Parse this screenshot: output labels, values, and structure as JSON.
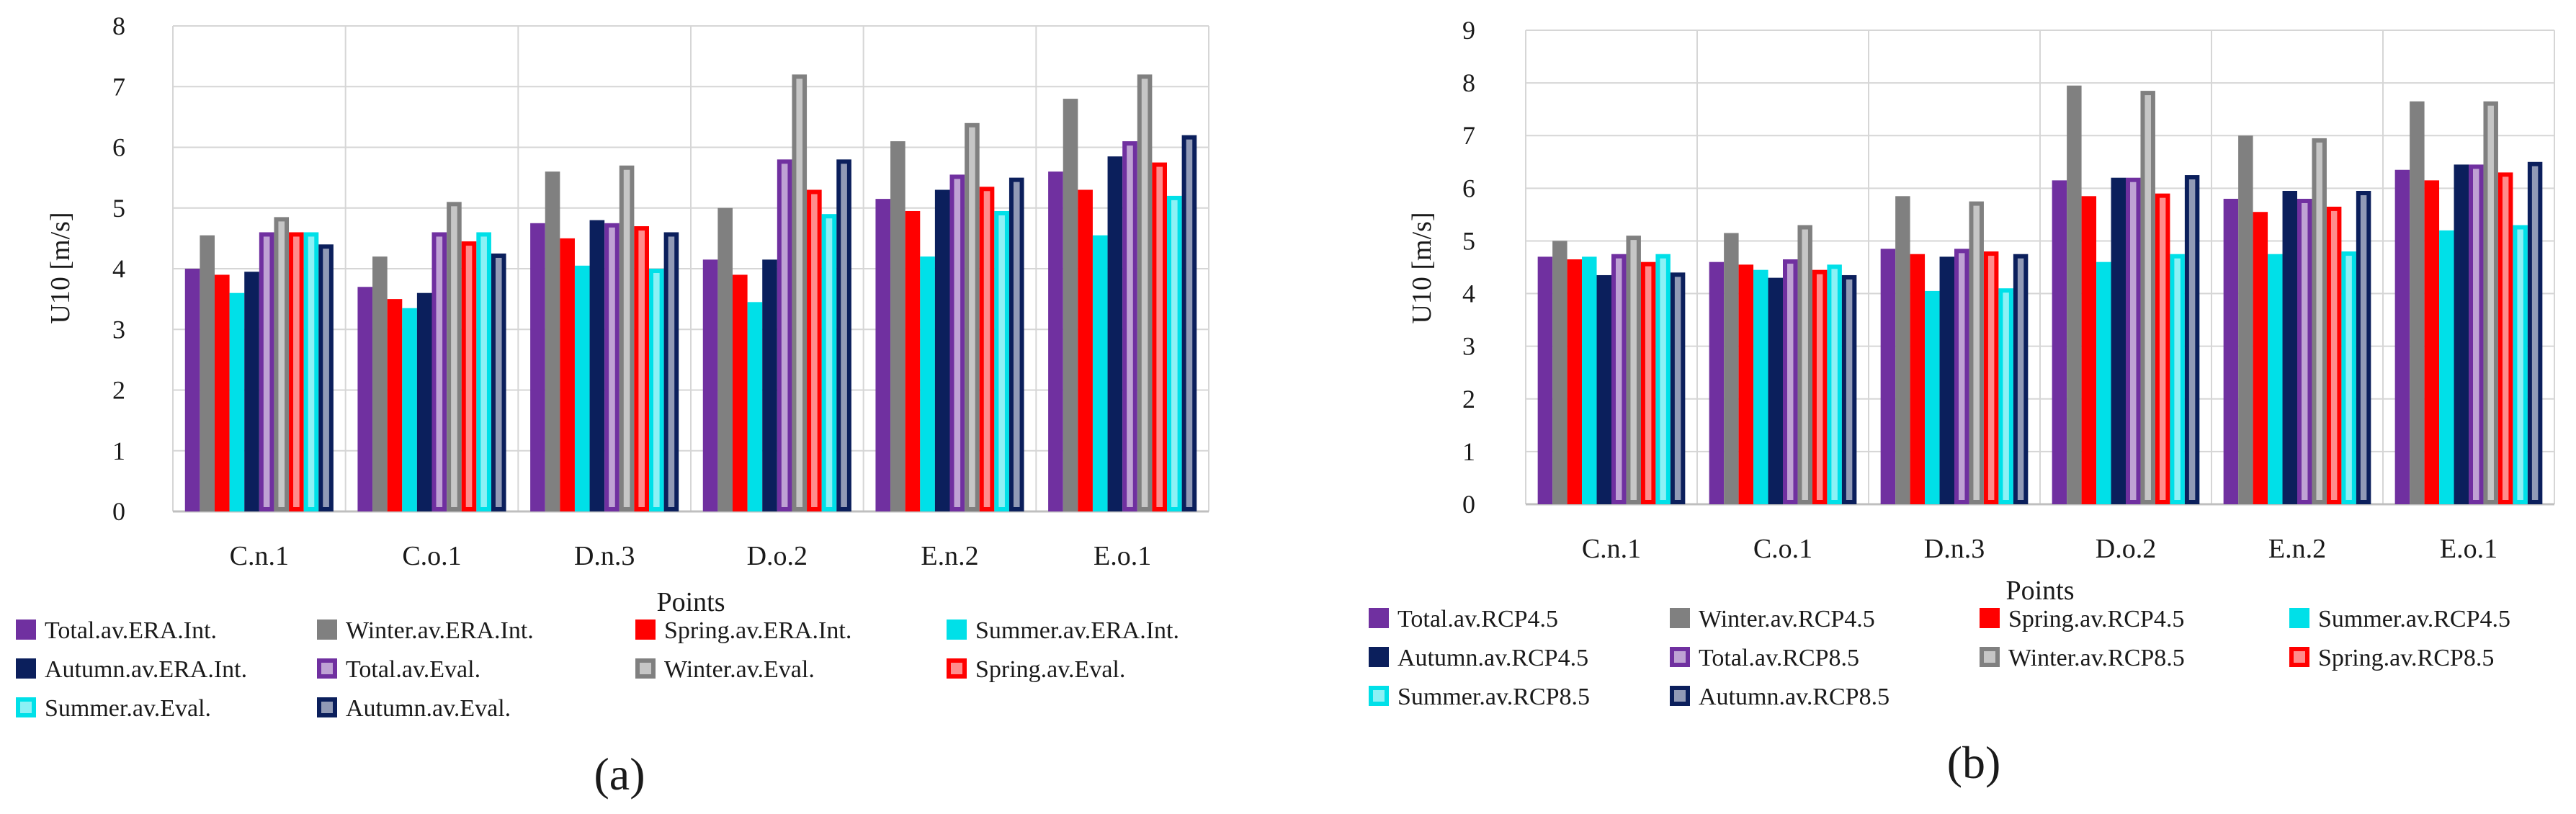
{
  "chart_data": [
    {
      "type": "bar",
      "panel_label": "(a)",
      "ylabel": "U10 [m/s]",
      "xlabel": "Points",
      "ylim": [
        0,
        8
      ],
      "yticks": [
        "0",
        "1",
        "2",
        "3",
        "4",
        "5",
        "6",
        "7",
        "8"
      ],
      "grid": true,
      "categories": [
        "C.n.1",
        "C.o.1",
        "D.n.3",
        "D.o.2",
        "E.n.2",
        "E.o.1"
      ],
      "series": [
        {
          "name": "Total.av.ERA.Int.",
          "style": "solid",
          "color": "#7030A0",
          "values": [
            4.0,
            3.7,
            4.75,
            4.15,
            5.15,
            5.6
          ]
        },
        {
          "name": "Winter.av.ERA.Int.",
          "style": "solid",
          "color": "#808080",
          "values": [
            4.55,
            4.2,
            5.6,
            5.0,
            6.1,
            6.8
          ]
        },
        {
          "name": "Spring.av.ERA.Int.",
          "style": "solid",
          "color": "#FF0000",
          "values": [
            3.9,
            3.5,
            4.5,
            3.9,
            4.95,
            5.3
          ]
        },
        {
          "name": "Summer.av.ERA.Int.",
          "style": "solid",
          "color": "#00E0E8",
          "values": [
            3.6,
            3.35,
            4.05,
            3.45,
            4.2,
            4.55
          ]
        },
        {
          "name": "Autumn.av.ERA.Int.",
          "style": "solid",
          "color": "#0B1F5C",
          "values": [
            3.95,
            3.6,
            4.8,
            4.15,
            5.3,
            5.85
          ]
        },
        {
          "name": "Total.av.Eval.",
          "style": "outline",
          "color": "#7030A0",
          "values": [
            4.6,
            4.6,
            4.75,
            5.8,
            5.55,
            6.1
          ]
        },
        {
          "name": "Winter.av.Eval.",
          "style": "outline",
          "color": "#808080",
          "values": [
            4.85,
            5.1,
            5.7,
            7.2,
            6.4,
            7.2
          ]
        },
        {
          "name": "Spring.av.Eval.",
          "style": "outline",
          "color": "#FF0000",
          "values": [
            4.6,
            4.45,
            4.7,
            5.3,
            5.35,
            5.75
          ]
        },
        {
          "name": "Summer.av.Eval.",
          "style": "outline",
          "color": "#00E0E8",
          "values": [
            4.6,
            4.6,
            4.0,
            4.9,
            4.95,
            5.2
          ]
        },
        {
          "name": "Autumn.av.Eval.",
          "style": "outline",
          "color": "#0B1F5C",
          "values": [
            4.4,
            4.25,
            4.6,
            5.8,
            5.5,
            6.2
          ]
        }
      ]
    },
    {
      "type": "bar",
      "panel_label": "(b)",
      "ylabel": "U10 [m/s]",
      "xlabel": "Points",
      "ylim": [
        0,
        9
      ],
      "yticks": [
        "0",
        "1",
        "2",
        "3",
        "4",
        "5",
        "6",
        "7",
        "8",
        "9"
      ],
      "grid": true,
      "categories": [
        "C.n.1",
        "C.o.1",
        "D.n.3",
        "D.o.2",
        "E.n.2",
        "E.o.1"
      ],
      "series": [
        {
          "name": "Total.av.RCP4.5",
          "style": "solid",
          "color": "#7030A0",
          "values": [
            4.7,
            4.6,
            4.85,
            6.15,
            5.8,
            6.35
          ]
        },
        {
          "name": "Winter.av.RCP4.5",
          "style": "solid",
          "color": "#808080",
          "values": [
            5.0,
            5.15,
            5.85,
            7.95,
            7.0,
            7.65
          ]
        },
        {
          "name": "Spring.av.RCP4.5",
          "style": "solid",
          "color": "#FF0000",
          "values": [
            4.65,
            4.55,
            4.75,
            5.85,
            5.55,
            6.15
          ]
        },
        {
          "name": "Summer.av.RCP4.5",
          "style": "solid",
          "color": "#00E0E8",
          "values": [
            4.7,
            4.45,
            4.05,
            4.6,
            4.75,
            5.2
          ]
        },
        {
          "name": "Autumn.av.RCP4.5",
          "style": "solid",
          "color": "#0B1F5C",
          "values": [
            4.35,
            4.3,
            4.7,
            6.2,
            5.95,
            6.45
          ]
        },
        {
          "name": "Total.av.RCP8.5",
          "style": "outline",
          "color": "#7030A0",
          "values": [
            4.75,
            4.65,
            4.85,
            6.2,
            5.8,
            6.45
          ]
        },
        {
          "name": "Winter.av.RCP8.5",
          "style": "outline",
          "color": "#808080",
          "values": [
            5.1,
            5.3,
            5.75,
            7.85,
            6.95,
            7.65
          ]
        },
        {
          "name": "Spring.av.RCP8.5",
          "style": "outline",
          "color": "#FF0000",
          "values": [
            4.6,
            4.45,
            4.8,
            5.9,
            5.65,
            6.3
          ]
        },
        {
          "name": "Summer.av.RCP8.5",
          "style": "outline",
          "color": "#00E0E8",
          "values": [
            4.75,
            4.55,
            4.1,
            4.75,
            4.8,
            5.3
          ]
        },
        {
          "name": "Autumn.av.RCP8.5",
          "style": "outline",
          "color": "#0B1F5C",
          "values": [
            4.4,
            4.35,
            4.75,
            6.25,
            5.95,
            6.5
          ]
        }
      ]
    }
  ]
}
